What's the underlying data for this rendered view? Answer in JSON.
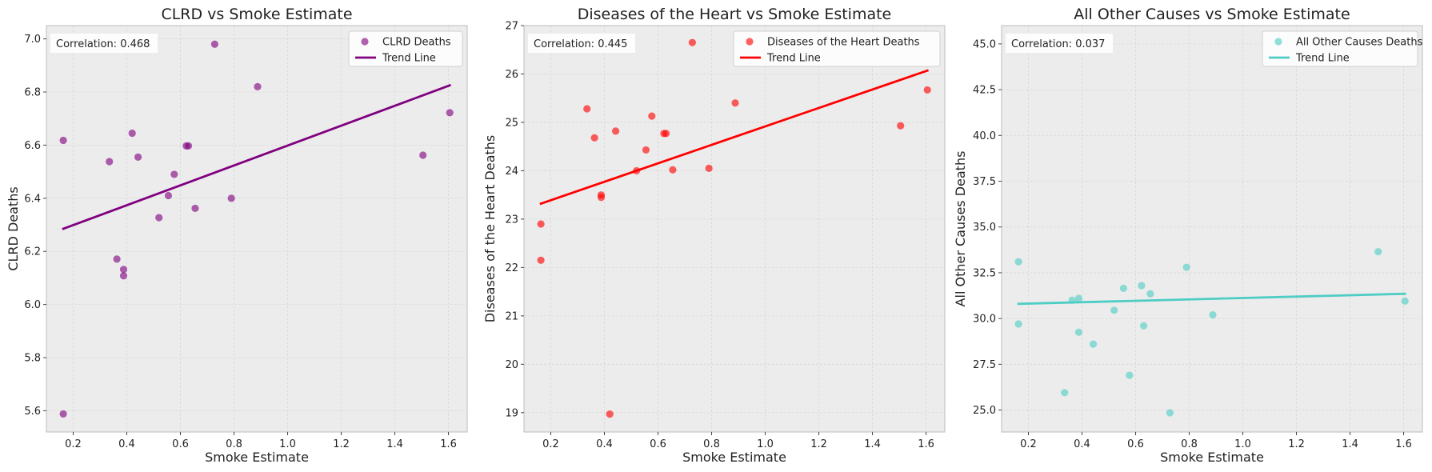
{
  "chart_data": [
    {
      "type": "scatter",
      "title": "CLRD vs Smoke Estimate",
      "xlabel": "Smoke Estimate",
      "ylabel": "CLRD Deaths",
      "xlim": [
        0.1,
        1.67
      ],
      "ylim": [
        5.52,
        7.05
      ],
      "xticks": [
        0.2,
        0.4,
        0.6,
        0.8,
        1.0,
        1.2,
        1.4,
        1.6
      ],
      "xtick_labels": [
        "0.2",
        "0.4",
        "0.6",
        "0.8",
        "1.0",
        "1.2",
        "1.4",
        "1.6"
      ],
      "yticks": [
        5.6,
        5.8,
        6.0,
        6.2,
        6.4,
        6.6,
        6.8,
        7.0
      ],
      "ytick_labels": [
        "5.6",
        "5.8",
        "6.0",
        "6.2",
        "6.4",
        "6.6",
        "6.8",
        "7.0"
      ],
      "grid": true,
      "legend_position": "top-right",
      "color": "#800080",
      "correlation_label": "Correlation: 0.468",
      "series": [
        {
          "name": "CLRD Deaths",
          "kind": "points",
          "points": [
            [
              0.163,
              6.618
            ],
            [
              0.163,
              5.588
            ],
            [
              0.335,
              6.538
            ],
            [
              0.363,
              6.171
            ],
            [
              0.388,
              6.132
            ],
            [
              0.388,
              6.108
            ],
            [
              0.42,
              6.645
            ],
            [
              0.442,
              6.555
            ],
            [
              0.52,
              6.327
            ],
            [
              0.555,
              6.41
            ],
            [
              0.577,
              6.49
            ],
            [
              0.622,
              6.597
            ],
            [
              0.63,
              6.597
            ],
            [
              0.655,
              6.362
            ],
            [
              0.728,
              6.98
            ],
            [
              0.79,
              6.4
            ],
            [
              0.888,
              6.82
            ],
            [
              1.505,
              6.562
            ],
            [
              1.605,
              6.722
            ]
          ]
        },
        {
          "name": "Trend Line",
          "kind": "line",
          "points": [
            [
              0.163,
              6.285
            ],
            [
              1.605,
              6.825
            ]
          ]
        }
      ]
    },
    {
      "type": "scatter",
      "title": "Diseases of the Heart vs Smoke Estimate",
      "xlabel": "Smoke Estimate",
      "ylabel": "Diseases of the Heart Deaths",
      "xlim": [
        0.1,
        1.67
      ],
      "ylim": [
        18.6,
        27.0
      ],
      "xticks": [
        0.2,
        0.4,
        0.6,
        0.8,
        1.0,
        1.2,
        1.4,
        1.6
      ],
      "xtick_labels": [
        "0.2",
        "0.4",
        "0.6",
        "0.8",
        "1.0",
        "1.2",
        "1.4",
        "1.6"
      ],
      "yticks": [
        19,
        20,
        21,
        22,
        23,
        24,
        25,
        26,
        27
      ],
      "ytick_labels": [
        "19",
        "20",
        "21",
        "22",
        "23",
        "24",
        "25",
        "26",
        "27"
      ],
      "grid": true,
      "legend_position": "top-right",
      "color": "#ff0000",
      "correlation_label": "Correlation: 0.445",
      "series": [
        {
          "name": "Diseases of the Heart Deaths",
          "kind": "points",
          "points": [
            [
              0.163,
              22.9
            ],
            [
              0.163,
              22.15
            ],
            [
              0.335,
              25.28
            ],
            [
              0.363,
              24.68
            ],
            [
              0.388,
              23.5
            ],
            [
              0.388,
              23.45
            ],
            [
              0.42,
              18.97
            ],
            [
              0.442,
              24.82
            ],
            [
              0.52,
              24.0
            ],
            [
              0.555,
              24.43
            ],
            [
              0.577,
              25.13
            ],
            [
              0.622,
              24.77
            ],
            [
              0.63,
              24.77
            ],
            [
              0.655,
              24.02
            ],
            [
              0.728,
              26.65
            ],
            [
              0.79,
              24.05
            ],
            [
              0.888,
              25.4
            ],
            [
              1.505,
              24.93
            ],
            [
              1.605,
              25.67
            ]
          ]
        },
        {
          "name": "Trend Line",
          "kind": "line",
          "points": [
            [
              0.163,
              23.32
            ],
            [
              1.605,
              26.07
            ]
          ]
        }
      ]
    },
    {
      "type": "scatter",
      "title": "All Other Causes vs Smoke Estimate",
      "xlabel": "Smoke Estimate",
      "ylabel": "All Other Causes Deaths",
      "xlim": [
        0.1,
        1.67
      ],
      "ylim": [
        23.8,
        46.0
      ],
      "xticks": [
        0.2,
        0.4,
        0.6,
        0.8,
        1.0,
        1.2,
        1.4,
        1.6
      ],
      "xtick_labels": [
        "0.2",
        "0.4",
        "0.6",
        "0.8",
        "1.0",
        "1.2",
        "1.4",
        "1.6"
      ],
      "yticks": [
        25.0,
        27.5,
        30.0,
        32.5,
        35.0,
        37.5,
        40.0,
        42.5,
        45.0
      ],
      "ytick_labels": [
        "25.0",
        "27.5",
        "30.0",
        "32.5",
        "35.0",
        "37.5",
        "40.0",
        "42.5",
        "45.0"
      ],
      "grid": true,
      "legend_position": "top-right",
      "color": "#4ecdc4",
      "correlation_label": "Correlation: 0.037",
      "series": [
        {
          "name": "All Other Causes Deaths",
          "kind": "points",
          "points": [
            [
              0.163,
              33.1
            ],
            [
              0.163,
              29.7
            ],
            [
              0.335,
              25.95
            ],
            [
              0.363,
              31.0
            ],
            [
              0.388,
              31.1
            ],
            [
              0.388,
              29.25
            ],
            [
              0.442,
              28.6
            ],
            [
              0.52,
              30.45
            ],
            [
              0.555,
              31.65
            ],
            [
              0.577,
              26.9
            ],
            [
              0.622,
              31.8
            ],
            [
              0.63,
              29.6
            ],
            [
              0.655,
              31.35
            ],
            [
              0.728,
              24.85
            ],
            [
              0.79,
              32.8
            ],
            [
              0.888,
              30.2
            ],
            [
              1.505,
              33.65
            ],
            [
              1.605,
              30.95
            ]
          ]
        },
        {
          "name": "Trend Line",
          "kind": "line",
          "points": [
            [
              0.163,
              30.8
            ],
            [
              1.605,
              31.35
            ]
          ]
        }
      ]
    }
  ]
}
